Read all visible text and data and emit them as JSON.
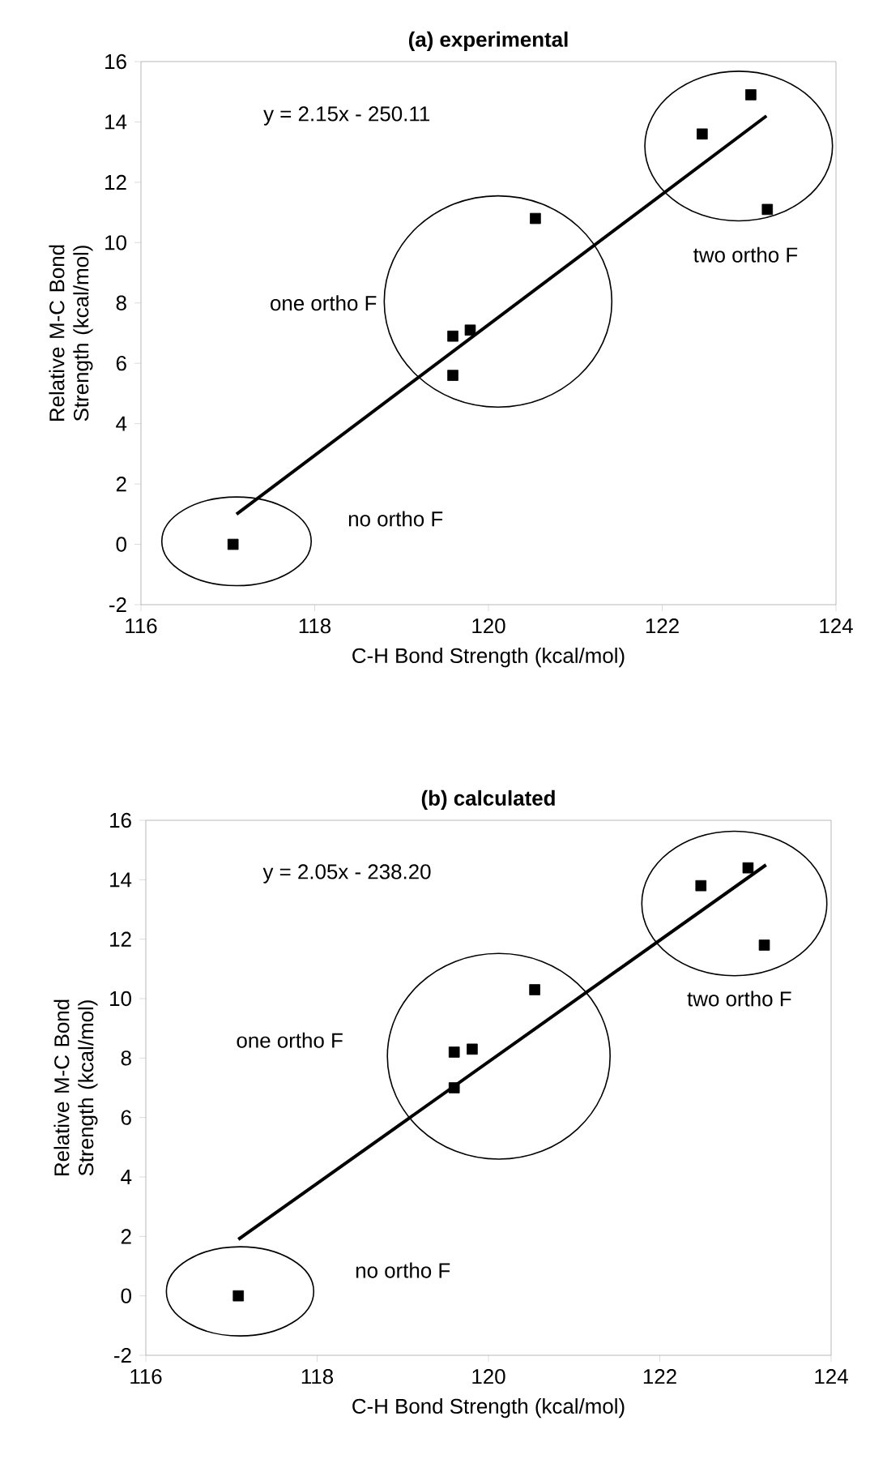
{
  "chart_data": [
    {
      "type": "scatter",
      "title": "(a) experimental",
      "xlabel": "C-H Bond Strength  (kcal/mol)",
      "ylabel": "Relative M-C Bond Strength (kcal/mol)",
      "xlim": [
        116,
        124
      ],
      "ylim": [
        -2,
        16
      ],
      "xticks": [
        116,
        118,
        120,
        122,
        124
      ],
      "yticks": [
        -2,
        0,
        2,
        4,
        6,
        8,
        10,
        12,
        14,
        16
      ],
      "series": [
        {
          "color": "#000000",
          "marker": "square",
          "x": [
            117.06,
            119.59,
            119.79,
            119.59,
            120.54,
            122.46,
            123.02,
            123.21
          ],
          "values": [
            0,
            6.9,
            7.1,
            5.6,
            10.8,
            13.6,
            14.9,
            11.1
          ]
        },
        {
          "type": "line",
          "color": "#000000",
          "x": [
            117.1,
            123.2
          ],
          "values": [
            1.0,
            14.2
          ]
        }
      ],
      "annotations": [
        "y = 2.15x - 250.11",
        "one ortho F",
        "two ortho F",
        "no ortho F"
      ]
    },
    {
      "type": "scatter",
      "title": "(b) calculated",
      "xlabel": "C-H Bond Strength  (kcal/mol)",
      "ylabel": "Relative M-C Bond Strength (kcal/mol)",
      "xlim": [
        116,
        124
      ],
      "ylim": [
        -2,
        16
      ],
      "xticks": [
        116,
        118,
        120,
        122,
        124
      ],
      "yticks": [
        -2,
        0,
        2,
        4,
        6,
        8,
        10,
        12,
        14,
        16
      ],
      "series": [
        {
          "color": "#000000",
          "marker": "square",
          "x": [
            117.08,
            119.6,
            119.81,
            119.6,
            120.54,
            122.48,
            123.03,
            123.22
          ],
          "values": [
            0,
            8.2,
            8.3,
            7.0,
            10.3,
            13.8,
            14.4,
            11.8
          ]
        },
        {
          "type": "line",
          "color": "#000000",
          "x": [
            117.08,
            123.24
          ],
          "values": [
            1.9,
            14.5
          ]
        }
      ],
      "annotations": [
        "y = 2.05x - 238.20",
        "one ortho F",
        "two ortho F",
        "no ortho F"
      ]
    }
  ]
}
